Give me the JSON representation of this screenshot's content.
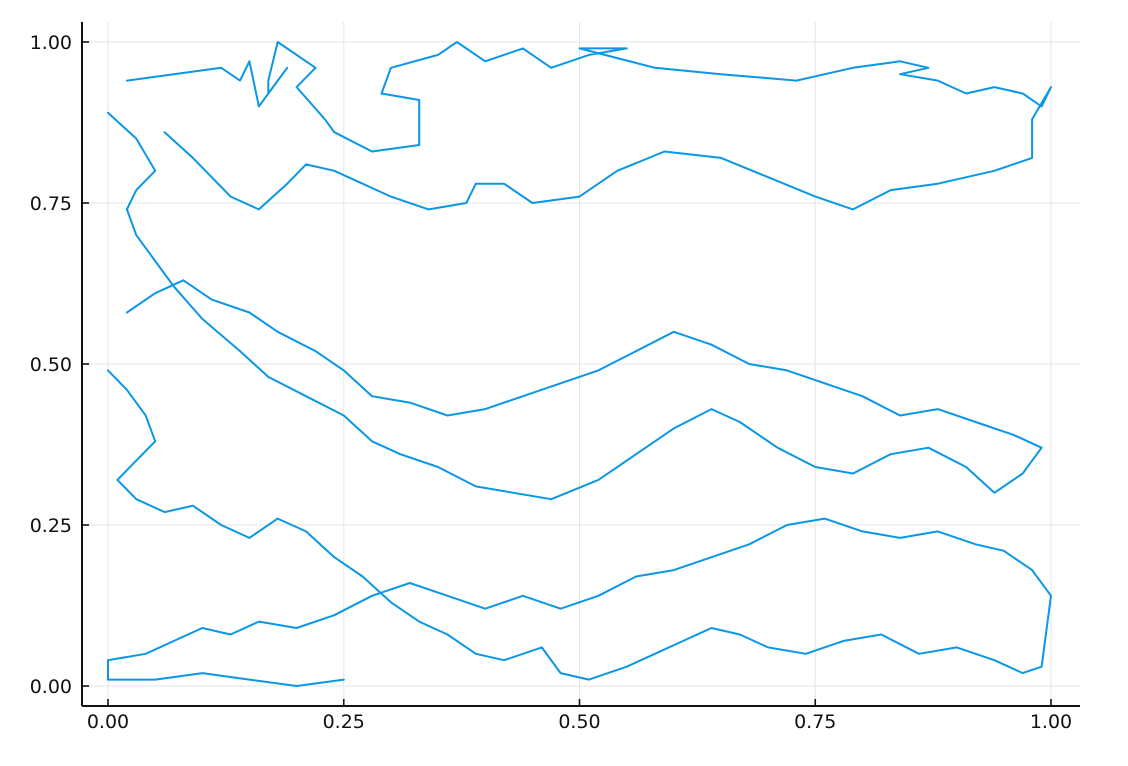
{
  "chart_data": {
    "type": "line",
    "title": "",
    "xlabel": "",
    "ylabel": "",
    "xlim": [
      0,
      1
    ],
    "ylim": [
      0,
      1
    ],
    "grid": true,
    "legend": "none",
    "series_color": "#0a97e6",
    "x_ticks": [
      "0.00",
      "0.25",
      "0.50",
      "0.75",
      "1.00"
    ],
    "y_ticks": [
      "0.00",
      "0.25",
      "0.50",
      "0.75",
      "1.00"
    ],
    "series": [
      {
        "points": [
          [
            0.02,
            0.94
          ],
          [
            0.12,
            0.96
          ],
          [
            0.13,
            0.95
          ],
          [
            0.14,
            0.94
          ],
          [
            0.15,
            0.97
          ],
          [
            0.16,
            0.9
          ],
          [
            0.19,
            0.96
          ],
          [
            0.18,
            0.94
          ],
          [
            0.17,
            0.92
          ],
          [
            0.17,
            0.94
          ],
          [
            0.18,
            1.0
          ],
          [
            0.22,
            0.96
          ],
          [
            0.2,
            0.93
          ],
          [
            0.23,
            0.88
          ],
          [
            0.24,
            0.86
          ],
          [
            0.28,
            0.83
          ],
          [
            0.33,
            0.84
          ],
          [
            0.33,
            0.91
          ],
          [
            0.29,
            0.92
          ],
          [
            0.3,
            0.96
          ],
          [
            0.35,
            0.98
          ],
          [
            0.37,
            1.0
          ],
          [
            0.4,
            0.97
          ],
          [
            0.44,
            0.99
          ],
          [
            0.47,
            0.96
          ],
          [
            0.51,
            0.98
          ],
          [
            0.55,
            0.99
          ],
          [
            0.5,
            0.99
          ],
          [
            0.58,
            0.96
          ],
          [
            0.65,
            0.95
          ],
          [
            0.73,
            0.94
          ],
          [
            0.76,
            0.95
          ],
          [
            0.79,
            0.96
          ],
          [
            0.84,
            0.97
          ],
          [
            0.87,
            0.96
          ],
          [
            0.84,
            0.95
          ],
          [
            0.88,
            0.94
          ],
          [
            0.91,
            0.92
          ],
          [
            0.94,
            0.93
          ],
          [
            0.97,
            0.92
          ],
          [
            0.99,
            0.9
          ],
          [
            1.0,
            0.93
          ],
          [
            0.98,
            0.88
          ],
          [
            0.98,
            0.82
          ],
          [
            0.94,
            0.8
          ],
          [
            0.88,
            0.78
          ],
          [
            0.83,
            0.77
          ],
          [
            0.79,
            0.74
          ],
          [
            0.75,
            0.76
          ],
          [
            0.7,
            0.79
          ],
          [
            0.65,
            0.82
          ],
          [
            0.59,
            0.83
          ],
          [
            0.54,
            0.8
          ],
          [
            0.5,
            0.76
          ],
          [
            0.45,
            0.75
          ],
          [
            0.42,
            0.78
          ],
          [
            0.39,
            0.78
          ],
          [
            0.38,
            0.75
          ],
          [
            0.34,
            0.74
          ],
          [
            0.3,
            0.76
          ],
          [
            0.27,
            0.78
          ],
          [
            0.24,
            0.8
          ],
          [
            0.21,
            0.81
          ],
          [
            0.19,
            0.78
          ],
          [
            0.16,
            0.74
          ],
          [
            0.13,
            0.76
          ],
          [
            0.11,
            0.79
          ],
          [
            0.09,
            0.82
          ],
          [
            0.06,
            0.86
          ]
        ]
      },
      {
        "points": [
          [
            0.0,
            0.89
          ],
          [
            0.03,
            0.85
          ],
          [
            0.05,
            0.8
          ],
          [
            0.03,
            0.77
          ],
          [
            0.02,
            0.74
          ],
          [
            0.03,
            0.7
          ],
          [
            0.05,
            0.66
          ],
          [
            0.07,
            0.62
          ],
          [
            0.1,
            0.57
          ],
          [
            0.14,
            0.52
          ],
          [
            0.17,
            0.48
          ],
          [
            0.21,
            0.45
          ],
          [
            0.25,
            0.42
          ],
          [
            0.28,
            0.38
          ],
          [
            0.31,
            0.36
          ],
          [
            0.35,
            0.34
          ],
          [
            0.39,
            0.31
          ],
          [
            0.43,
            0.3
          ],
          [
            0.47,
            0.29
          ],
          [
            0.52,
            0.32
          ],
          [
            0.56,
            0.36
          ],
          [
            0.6,
            0.4
          ],
          [
            0.64,
            0.43
          ],
          [
            0.67,
            0.41
          ],
          [
            0.71,
            0.37
          ],
          [
            0.75,
            0.34
          ],
          [
            0.79,
            0.33
          ],
          [
            0.83,
            0.36
          ],
          [
            0.87,
            0.37
          ],
          [
            0.91,
            0.34
          ],
          [
            0.94,
            0.3
          ],
          [
            0.97,
            0.33
          ],
          [
            0.99,
            0.37
          ],
          [
            0.96,
            0.39
          ],
          [
            0.92,
            0.41
          ],
          [
            0.88,
            0.43
          ],
          [
            0.84,
            0.42
          ],
          [
            0.8,
            0.45
          ],
          [
            0.76,
            0.47
          ],
          [
            0.72,
            0.49
          ],
          [
            0.68,
            0.5
          ],
          [
            0.64,
            0.53
          ],
          [
            0.6,
            0.55
          ],
          [
            0.56,
            0.52
          ],
          [
            0.52,
            0.49
          ],
          [
            0.48,
            0.47
          ],
          [
            0.44,
            0.45
          ],
          [
            0.4,
            0.43
          ],
          [
            0.36,
            0.42
          ],
          [
            0.32,
            0.44
          ],
          [
            0.28,
            0.45
          ],
          [
            0.25,
            0.49
          ],
          [
            0.22,
            0.52
          ],
          [
            0.18,
            0.55
          ],
          [
            0.15,
            0.58
          ],
          [
            0.11,
            0.6
          ],
          [
            0.08,
            0.63
          ],
          [
            0.05,
            0.61
          ],
          [
            0.02,
            0.58
          ]
        ]
      },
      {
        "points": [
          [
            0.0,
            0.49
          ],
          [
            0.02,
            0.46
          ],
          [
            0.04,
            0.42
          ],
          [
            0.05,
            0.38
          ],
          [
            0.03,
            0.35
          ],
          [
            0.01,
            0.32
          ],
          [
            0.03,
            0.29
          ],
          [
            0.06,
            0.27
          ],
          [
            0.09,
            0.28
          ],
          [
            0.12,
            0.25
          ],
          [
            0.15,
            0.23
          ],
          [
            0.18,
            0.26
          ],
          [
            0.21,
            0.24
          ],
          [
            0.24,
            0.2
          ],
          [
            0.27,
            0.17
          ],
          [
            0.3,
            0.13
          ],
          [
            0.33,
            0.1
          ],
          [
            0.36,
            0.08
          ],
          [
            0.39,
            0.05
          ],
          [
            0.42,
            0.04
          ],
          [
            0.46,
            0.06
          ],
          [
            0.48,
            0.02
          ],
          [
            0.51,
            0.01
          ],
          [
            0.55,
            0.03
          ],
          [
            0.58,
            0.05
          ],
          [
            0.61,
            0.07
          ],
          [
            0.64,
            0.09
          ],
          [
            0.67,
            0.08
          ],
          [
            0.7,
            0.06
          ],
          [
            0.74,
            0.05
          ],
          [
            0.78,
            0.07
          ],
          [
            0.82,
            0.08
          ],
          [
            0.86,
            0.05
          ],
          [
            0.9,
            0.06
          ],
          [
            0.94,
            0.04
          ],
          [
            0.97,
            0.02
          ],
          [
            0.99,
            0.03
          ],
          [
            1.0,
            0.14
          ],
          [
            0.98,
            0.18
          ],
          [
            0.95,
            0.21
          ],
          [
            0.92,
            0.22
          ],
          [
            0.88,
            0.24
          ],
          [
            0.84,
            0.23
          ],
          [
            0.8,
            0.24
          ],
          [
            0.76,
            0.26
          ],
          [
            0.72,
            0.25
          ],
          [
            0.68,
            0.22
          ],
          [
            0.64,
            0.2
          ],
          [
            0.6,
            0.18
          ],
          [
            0.56,
            0.17
          ],
          [
            0.52,
            0.14
          ],
          [
            0.48,
            0.12
          ],
          [
            0.44,
            0.14
          ],
          [
            0.4,
            0.12
          ],
          [
            0.36,
            0.14
          ],
          [
            0.32,
            0.16
          ],
          [
            0.28,
            0.14
          ],
          [
            0.24,
            0.11
          ],
          [
            0.2,
            0.09
          ],
          [
            0.16,
            0.1
          ],
          [
            0.13,
            0.08
          ],
          [
            0.1,
            0.09
          ],
          [
            0.07,
            0.07
          ],
          [
            0.04,
            0.05
          ],
          [
            0.0,
            0.04
          ],
          [
            0.0,
            0.01
          ],
          [
            0.05,
            0.01
          ],
          [
            0.1,
            0.02
          ],
          [
            0.15,
            0.01
          ],
          [
            0.2,
            0.0
          ],
          [
            0.25,
            0.01
          ]
        ]
      }
    ]
  }
}
